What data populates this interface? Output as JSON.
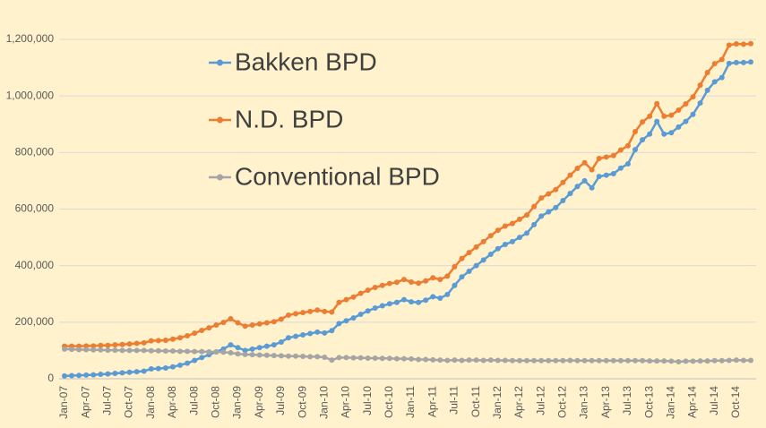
{
  "chart_data": {
    "type": "line",
    "categories": [
      "Jan-07",
      null,
      null,
      "Apr-07",
      null,
      null,
      "Jul-07",
      null,
      null,
      "Oct-07",
      null,
      null,
      "Jan-08",
      null,
      null,
      "Apr-08",
      null,
      null,
      "Jul-08",
      null,
      null,
      "Oct-08",
      null,
      null,
      "Jan-09",
      null,
      null,
      "Apr-09",
      null,
      null,
      "Jul-09",
      null,
      null,
      "Oct-09",
      null,
      null,
      "Jan-10",
      null,
      null,
      "Apr-10",
      null,
      null,
      "Jul-10",
      null,
      null,
      "Oct-10",
      null,
      null,
      "Jan-11",
      null,
      null,
      "Apr-11",
      null,
      null,
      "Jul-11",
      null,
      null,
      "Oct-11",
      null,
      null,
      "Jan-12",
      null,
      null,
      "Apr-12",
      null,
      null,
      "Jul-12",
      null,
      null,
      "Oct-12",
      null,
      null,
      "Jan-13",
      null,
      null,
      "Apr-13",
      null,
      null,
      "Jul-13",
      null,
      null,
      "Oct-13",
      null,
      null,
      "Jan-14",
      null,
      null,
      "Apr-14",
      null,
      null,
      "Jul-14",
      null,
      null,
      "Oct-14",
      null,
      null
    ],
    "series": [
      {
        "name": "Bakken BPD",
        "color": "#5b9bd5",
        "values": [
          10000,
          11000,
          12000,
          13000,
          14000,
          16000,
          17000,
          19000,
          21000,
          23000,
          25000,
          27000,
          35000,
          36000,
          38000,
          42000,
          48000,
          55000,
          65000,
          75000,
          85000,
          95000,
          105000,
          120000,
          110000,
          100000,
          105000,
          110000,
          115000,
          120000,
          130000,
          145000,
          150000,
          155000,
          160000,
          165000,
          162000,
          170000,
          195000,
          205000,
          215000,
          228000,
          240000,
          250000,
          258000,
          265000,
          270000,
          280000,
          272000,
          270000,
          278000,
          290000,
          285000,
          298000,
          330000,
          360000,
          380000,
          400000,
          420000,
          440000,
          460000,
          475000,
          485000,
          500000,
          515000,
          545000,
          575000,
          590000,
          605000,
          630000,
          655000,
          680000,
          700000,
          675000,
          715000,
          720000,
          725000,
          745000,
          760000,
          810000,
          845000,
          865000,
          910000,
          865000,
          870000,
          890000,
          910000,
          935000,
          975000,
          1020000,
          1050000,
          1065000,
          1115000,
          1118000,
          1118000,
          1120000
        ]
      },
      {
        "name": "N.D. BPD",
        "color": "#ed7d31",
        "values": [
          115000,
          115000,
          115000,
          116000,
          116000,
          118000,
          118000,
          120000,
          121000,
          123000,
          125000,
          127000,
          134000,
          135000,
          136000,
          140000,
          145000,
          152000,
          161000,
          171000,
          180000,
          190000,
          199000,
          212000,
          198000,
          186000,
          190000,
          194000,
          198000,
          202000,
          211000,
          225000,
          230000,
          234000,
          238000,
          243000,
          238000,
          236000,
          270000,
          280000,
          289000,
          302000,
          313000,
          323000,
          330000,
          337000,
          341000,
          351000,
          342000,
          338000,
          346000,
          357000,
          351000,
          363000,
          396000,
          425000,
          446000,
          466000,
          485000,
          506000,
          525000,
          540000,
          549000,
          564000,
          579000,
          609000,
          639000,
          654000,
          669000,
          694000,
          720000,
          744000,
          764000,
          739000,
          779000,
          784000,
          789000,
          809000,
          824000,
          874000,
          908000,
          928000,
          973000,
          928000,
          932000,
          950000,
          972000,
          997000,
          1038000,
          1083000,
          1114000,
          1129000,
          1180000,
          1184000,
          1183000,
          1185000
        ]
      },
      {
        "name": "Conventional BPD",
        "color": "#a5a5a5",
        "values": [
          105000,
          104000,
          103000,
          103000,
          102000,
          102000,
          101000,
          101000,
          100000,
          100000,
          100000,
          100000,
          99000,
          99000,
          98000,
          98000,
          97000,
          97000,
          96000,
          96000,
          95000,
          95000,
          94000,
          92000,
          88000,
          86000,
          85000,
          84000,
          83000,
          82000,
          81000,
          80000,
          80000,
          79000,
          78000,
          78000,
          76000,
          66000,
          75000,
          75000,
          74000,
          74000,
          73000,
          73000,
          72000,
          72000,
          71000,
          71000,
          70000,
          68000,
          68000,
          67000,
          66000,
          65000,
          66000,
          65000,
          66000,
          66000,
          65000,
          66000,
          65000,
          65000,
          64000,
          64000,
          64000,
          64000,
          64000,
          64000,
          64000,
          64000,
          65000,
          64000,
          64000,
          64000,
          64000,
          64000,
          64000,
          64000,
          64000,
          64000,
          64000,
          63000,
          63000,
          63000,
          62000,
          60000,
          62000,
          62000,
          63000,
          63000,
          64000,
          64000,
          65000,
          66000,
          65000,
          65000
        ]
      }
    ],
    "ylim": [
      0,
      1200000
    ],
    "yticks": [
      0,
      {
        "value": 200000,
        "label": "200,000"
      },
      {
        "value": 400000,
        "label": "400,000"
      },
      {
        "value": 600000,
        "label": "600,000"
      },
      {
        "value": 800000,
        "label": "800,000"
      },
      {
        "value": 1000000,
        "label": "1,000,000"
      },
      {
        "value": 1200000,
        "label": "1,200,000"
      }
    ],
    "grid": true,
    "legend": "top-left"
  }
}
